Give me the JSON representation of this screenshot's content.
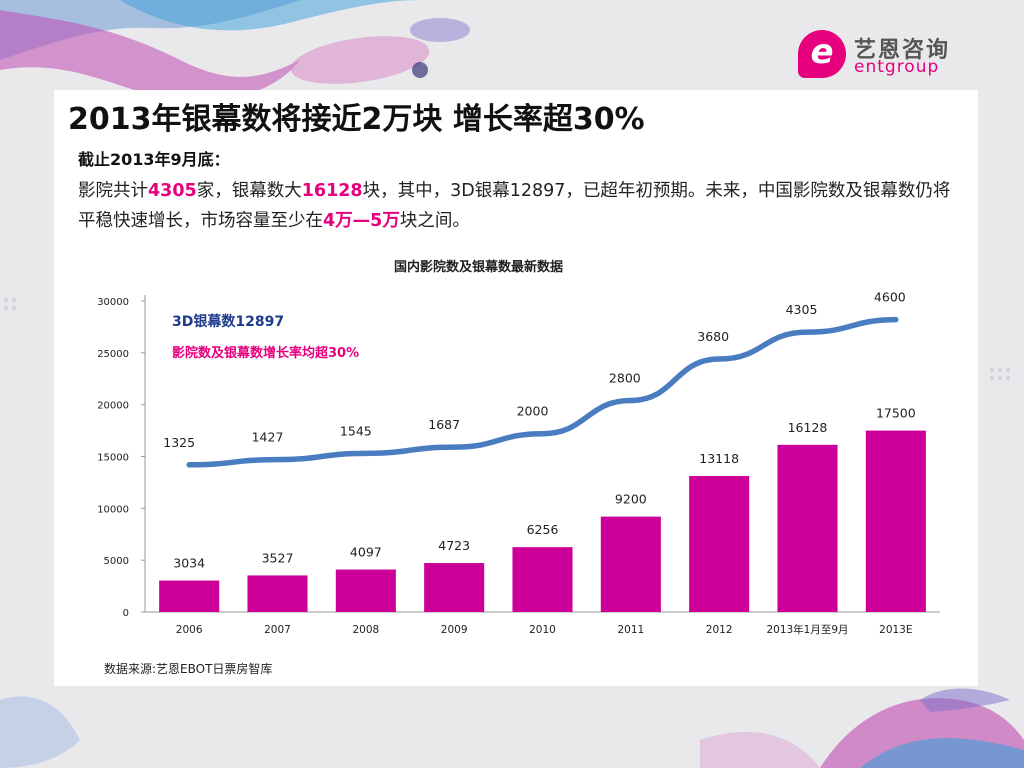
{
  "brand": {
    "name_cn": "艺恩咨询",
    "name_en": "entgroup",
    "mark": "e",
    "accent": "#e6007e"
  },
  "slide": {
    "title": "2013年银幕数将接近2万块 增长率超30%",
    "subtitle": "截止2013年9月底：",
    "body": {
      "p1": "影院共计",
      "v1": "4305",
      "p2": "家，银幕数大",
      "v2": "16128",
      "p3": "块，其中，3D银幕12897，已超年初预期。未来，中国影院数及银幕数仍将平稳快速增长，市场容量至少在",
      "v3": "4万—5万",
      "p4": "块之间。"
    },
    "source": "数据来源:艺恩EBOT日票房智库"
  },
  "chart_data": {
    "type": "bar",
    "title": "国内影院数及银幕数最新数据",
    "categories": [
      "2006",
      "2007",
      "2008",
      "2009",
      "2010",
      "2011",
      "2012",
      "2013年1月至9月",
      "2013E"
    ],
    "ylim": [
      0,
      30000
    ],
    "yticks": [
      0,
      5000,
      10000,
      15000,
      20000,
      25000,
      30000
    ],
    "series": [
      {
        "name": "银幕数",
        "kind": "bar",
        "color": "#cc0099",
        "values": [
          3034,
          3527,
          4097,
          4723,
          6256,
          9200,
          13118,
          16128,
          17500
        ]
      },
      {
        "name": "影院数",
        "kind": "line",
        "color": "#4a7cc0",
        "labels": [
          1325,
          1427,
          1545,
          1687,
          2000,
          2800,
          3680,
          4305,
          4600
        ],
        "plotted_values": [
          14200,
          14700,
          15300,
          15900,
          17200,
          20400,
          24400,
          27000,
          28200
        ]
      }
    ],
    "annotations": [
      {
        "text": "3D银幕数12897",
        "color": "#1f3b8c"
      },
      {
        "text": "影院数及银幕数增长率均超30%",
        "color": "#e6007e"
      }
    ]
  }
}
